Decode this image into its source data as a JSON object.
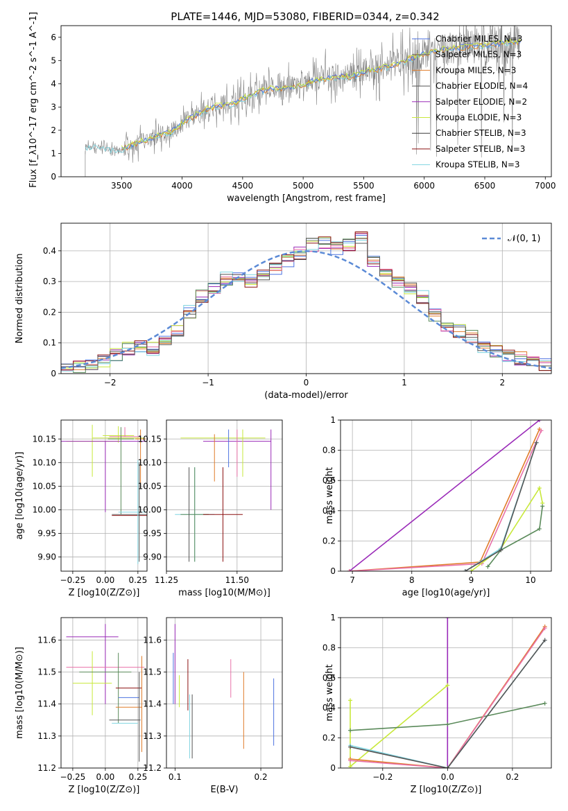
{
  "title": "PLATE=1446, MJD=53080, FIBERID=0344, z=0.342",
  "colors": {
    "s0": "#4c72e0",
    "s1": "#6d6d6d",
    "s2": "#e07b28",
    "s3": "#555555",
    "s4": "#9a2ab8",
    "s5": "#c8e83a",
    "s6": "#3a3a3a",
    "s7": "#8b1010",
    "s8": "#7fd4e0",
    "pink": "#e870a8",
    "green": "#5a8a5a",
    "gray": "#808080"
  },
  "chart_data": [
    {
      "id": "spectrum",
      "type": "line",
      "xlabel": "wavelength [Angstrom, rest frame]",
      "ylabel": "Flux [f_λ10^-17 erg cm^-2 s^-1 A^-1]",
      "xlim": [
        3000,
        7050
      ],
      "ylim": [
        0,
        6.5
      ],
      "xticks": [
        3500,
        4000,
        4500,
        5000,
        5500,
        6000,
        6500,
        7000
      ],
      "yticks": [
        0,
        1,
        2,
        3,
        4,
        5,
        6
      ],
      "legend": [
        "Chabrier MILES, N_SSP=3",
        "Salpeter MILES, N_SSP=3",
        "Kroupa MILES, N_SSP=3",
        "Chabrier ELODIE, N_SSP=4",
        "Salpeter ELODIE, N_SSP=2",
        "Kroupa ELODIE, N_SSP=3",
        "Chabrier STELIB, N_SSP=3",
        "Salpeter STELIB, N_SSP=3",
        "Kroupa STELIB, N_SSP=3"
      ],
      "legend_loc": "upper right",
      "model_x": [
        3200,
        3300,
        3400,
        3500,
        3600,
        3700,
        3800,
        3900,
        4000,
        4100,
        4200,
        4300,
        4400,
        4500,
        4600,
        4700,
        4800,
        4900,
        5000,
        5100,
        5200,
        5300,
        5400,
        5500,
        5600,
        5700,
        5800,
        5900,
        6000,
        6100,
        6200,
        6300,
        6400,
        6500,
        6600,
        6700,
        6800
      ],
      "model_y": [
        1.3,
        1.3,
        1.2,
        1.2,
        1.4,
        1.55,
        1.8,
        1.9,
        2.3,
        2.6,
        2.9,
        3.05,
        3.1,
        3.35,
        3.6,
        3.75,
        3.8,
        3.85,
        3.95,
        4.15,
        4.25,
        4.3,
        4.3,
        4.5,
        4.6,
        4.75,
        4.9,
        5.1,
        5.3,
        5.4,
        5.5,
        5.55,
        5.6,
        5.65,
        5.7,
        5.8,
        5.8
      ]
    },
    {
      "id": "residuals",
      "type": "histogram",
      "xlabel": "(data-model)/error",
      "ylabel": "Normed distribution",
      "xlim": [
        -2.5,
        2.5
      ],
      "ylim": [
        0,
        0.49
      ],
      "xticks": [
        -2,
        -1,
        0,
        1,
        2
      ],
      "yticks": [
        0.0,
        0.1,
        0.2,
        0.3,
        0.4
      ],
      "grid": true,
      "legend": [
        "𝒩(0, 1)"
      ],
      "legend_loc": "upper right",
      "bin_edges_range": [
        -2.5,
        2.5
      ],
      "bins": 40,
      "base_values": [
        0.02,
        0.025,
        0.03,
        0.04,
        0.06,
        0.08,
        0.09,
        0.08,
        0.11,
        0.14,
        0.2,
        0.25,
        0.28,
        0.31,
        0.32,
        0.3,
        0.32,
        0.34,
        0.37,
        0.39,
        0.42,
        0.43,
        0.41,
        0.42,
        0.44,
        0.36,
        0.32,
        0.3,
        0.28,
        0.25,
        0.19,
        0.16,
        0.14,
        0.12,
        0.09,
        0.07,
        0.06,
        0.05,
        0.04,
        0.03
      ]
    },
    {
      "id": "age_vs_Z",
      "type": "errorbar",
      "xlabel": "Z [log10(Z/Z⊙)]",
      "ylabel": "age  [log10(age/yr)]",
      "xlim": [
        -0.34,
        0.32
      ],
      "ylim": [
        9.87,
        10.19
      ],
      "xticks": [
        -0.25,
        0.0,
        0.25
      ],
      "xticklabels": [
        "−0.25",
        "0.00",
        "0.25"
      ],
      "yticks": [
        9.9,
        9.95,
        10.0,
        10.05,
        10.1,
        10.15
      ],
      "yticklabels": [
        "9.90",
        "9.95",
        "10.00",
        "10.05",
        "10.10",
        "10.15"
      ],
      "grid": true,
      "points": [
        {
          "x": 0.1,
          "y": 10.152,
          "xe": 0.2,
          "yl": 0.01,
          "yu": 0.025,
          "c": "s5"
        },
        {
          "x": 0.1,
          "y": 10.157,
          "xe": 0.12,
          "yl": 0.0,
          "yu": 0.0,
          "c": "s5"
        },
        {
          "x": -0.1,
          "y": 10.145,
          "xe": 0.2,
          "yl": 0.075,
          "yu": 0.035,
          "c": "s5"
        },
        {
          "x": 0.0,
          "y": 10.145,
          "xe": 0.35,
          "yl": 0.15,
          "yu": 0.0,
          "c": "s4"
        },
        {
          "x": 0.15,
          "y": 10.155,
          "xe": 0.12,
          "yl": 0.0,
          "yu": 0.02,
          "c": "pink"
        },
        {
          "x": 0.27,
          "y": 10.15,
          "xe": 0.04,
          "yl": 0.105,
          "yu": 0.02,
          "c": "s2"
        },
        {
          "x": 0.12,
          "y": 10.15,
          "xe": 0.1,
          "yl": 0.16,
          "yu": 0.025,
          "c": "green"
        },
        {
          "x": 0.25,
          "y": 9.99,
          "xe": 0.2,
          "yl": 0.0,
          "yu": 0.0,
          "c": "s1"
        },
        {
          "x": 0.25,
          "y": 9.988,
          "xe": 0.2,
          "yl": 0.0,
          "yu": 0.0,
          "c": "s7"
        },
        {
          "x": 0.25,
          "y": 9.995,
          "xe": 0.15,
          "yl": 0.11,
          "yu": 0.11,
          "c": "s8"
        },
        {
          "x": 0.26,
          "y": 10.0,
          "xe": 0.0,
          "yl": 0.11,
          "yu": 0.1,
          "c": "s3"
        }
      ]
    },
    {
      "id": "age_vs_mass",
      "type": "errorbar",
      "xlabel": "mass [log10(M/M⊙)]",
      "ylabel": "",
      "xlim": [
        11.25,
        11.66
      ],
      "ylim": [
        9.87,
        10.19
      ],
      "xticks": [
        11.25,
        11.5
      ],
      "xticklabels": [
        "11.25",
        "11.50"
      ],
      "yticks": [
        9.9,
        9.95,
        10.0,
        10.05,
        10.1,
        10.15
      ],
      "yticklabels": [
        "9.90",
        "9.95",
        "10.00",
        "10.05",
        "10.10",
        "10.15"
      ],
      "grid": true,
      "points": [
        {
          "x": 11.45,
          "y": 10.152,
          "xe": 0.15,
          "yl": 0.0,
          "yu": 0.0,
          "c": "s5"
        },
        {
          "x": 11.5,
          "y": 10.145,
          "xe": 0.12,
          "yl": 0.0,
          "yu": 0.0,
          "c": "s4"
        },
        {
          "x": 11.62,
          "y": 10.14,
          "xe": 0.0,
          "yl": 0.14,
          "yu": 0.03,
          "c": "s4"
        },
        {
          "x": 11.52,
          "y": 10.15,
          "xe": 0.0,
          "yl": 0.08,
          "yu": 0.02,
          "c": "s5"
        },
        {
          "x": 11.47,
          "y": 10.15,
          "xe": 0.0,
          "yl": 0.06,
          "yu": 0.02,
          "c": "s0"
        },
        {
          "x": 11.5,
          "y": 10.15,
          "xe": 0.0,
          "yl": 0.08,
          "yu": 0.02,
          "c": "pink"
        },
        {
          "x": 11.42,
          "y": 10.14,
          "xe": 0.0,
          "yl": 0.08,
          "yu": 0.02,
          "c": "s2"
        },
        {
          "x": 11.35,
          "y": 9.99,
          "xe": 0.07,
          "yl": 0.1,
          "yu": 0.1,
          "c": "s8"
        },
        {
          "x": 11.35,
          "y": 9.99,
          "xe": 0.05,
          "yl": 0.1,
          "yu": 0.1,
          "c": "green"
        },
        {
          "x": 11.45,
          "y": 9.99,
          "xe": 0.07,
          "yl": 0.1,
          "yu": 0.1,
          "c": "s7"
        },
        {
          "x": 11.33,
          "y": 9.99,
          "xe": 0.0,
          "yl": 0.1,
          "yu": 0.1,
          "c": "s3"
        }
      ]
    },
    {
      "id": "weight_vs_age",
      "type": "line",
      "xlabel": "age  [log10(age/yr)]",
      "ylabel": "mass weight",
      "xlim": [
        6.8,
        10.35
      ],
      "ylim": [
        0,
        1.0
      ],
      "xticks": [
        7,
        8,
        9,
        10
      ],
      "yticks": [
        0.0,
        0.2,
        0.4,
        0.6,
        0.8,
        1.0
      ],
      "grid": true,
      "series": [
        {
          "c": "s4",
          "x": [
            6.95,
            10.15
          ],
          "y": [
            0.0,
            1.0
          ]
        },
        {
          "c": "s2",
          "x": [
            6.95,
            9.15,
            10.15
          ],
          "y": [
            0.0,
            0.06,
            0.94
          ]
        },
        {
          "c": "pink",
          "x": [
            6.95,
            9.18,
            10.18
          ],
          "y": [
            0.0,
            0.05,
            0.93
          ]
        },
        {
          "c": "s5",
          "x": [
            9.0,
            9.5,
            10.15,
            10.2
          ],
          "y": [
            0.0,
            0.15,
            0.55,
            0.45
          ]
        },
        {
          "c": "green",
          "x": [
            9.28,
            9.5,
            10.15,
            10.2
          ],
          "y": [
            0.03,
            0.14,
            0.28,
            0.43
          ]
        },
        {
          "c": "s8",
          "x": [
            8.9,
            9.5,
            10.1
          ],
          "y": [
            0.0,
            0.15,
            0.85
          ]
        },
        {
          "c": "s3",
          "x": [
            8.9,
            9.5,
            10.1
          ],
          "y": [
            0.0,
            0.14,
            0.85
          ]
        }
      ]
    },
    {
      "id": "mass_vs_Z",
      "type": "errorbar",
      "xlabel": "Z [log10(Z/Z⊙)]",
      "ylabel": "mass [log10(M/M⊙)]",
      "xlim": [
        -0.34,
        0.32
      ],
      "ylim": [
        11.2,
        11.67
      ],
      "xticks": [
        -0.25,
        0.0,
        0.25
      ],
      "xticklabels": [
        "−0.25",
        "0.00",
        "0.25"
      ],
      "yticks": [
        11.2,
        11.3,
        11.4,
        11.5,
        11.6
      ],
      "yticklabels": [
        "11.2",
        "11.3",
        "11.4",
        "11.5",
        "11.6"
      ],
      "grid": true,
      "points": [
        {
          "x": -0.1,
          "y": 11.61,
          "xe": 0.2,
          "yl": 0.0,
          "yu": 0.0,
          "c": "s4"
        },
        {
          "x": 0.0,
          "y": 11.6,
          "xe": 0.0,
          "yl": 0.2,
          "yu": 0.05,
          "c": "s4"
        },
        {
          "x": 0.0,
          "y": 11.515,
          "xe": 0.3,
          "yl": 0.0,
          "yu": 0.0,
          "c": "pink"
        },
        {
          "x": -0.1,
          "y": 11.465,
          "xe": 0.15,
          "yl": 0.1,
          "yu": 0.1,
          "c": "s5"
        },
        {
          "x": 0.0,
          "y": 11.5,
          "xe": 0.2,
          "yl": 0.0,
          "yu": 0.0,
          "c": "green"
        },
        {
          "x": 0.1,
          "y": 11.45,
          "xe": 0.0,
          "yl": 0.11,
          "yu": 0.11,
          "c": "green"
        },
        {
          "x": 0.18,
          "y": 11.45,
          "xe": 0.1,
          "yl": 0.0,
          "yu": 0.0,
          "c": "s7"
        },
        {
          "x": 0.18,
          "y": 11.42,
          "xe": 0.08,
          "yl": 0.0,
          "yu": 0.0,
          "c": "s0"
        },
        {
          "x": 0.18,
          "y": 11.39,
          "xe": 0.1,
          "yl": 0.0,
          "yu": 0.0,
          "c": "s2"
        },
        {
          "x": 0.15,
          "y": 11.35,
          "xe": 0.12,
          "yl": 0.0,
          "yu": 0.0,
          "c": "s3"
        },
        {
          "x": 0.15,
          "y": 11.34,
          "xe": 0.1,
          "yl": 0.0,
          "yu": 0.0,
          "c": "s8"
        },
        {
          "x": 0.26,
          "y": 11.4,
          "xe": 0.0,
          "yl": 0.18,
          "yu": 0.1,
          "c": "s3"
        },
        {
          "x": 0.28,
          "y": 11.4,
          "xe": 0.0,
          "yl": 0.15,
          "yu": 0.15,
          "c": "s2"
        }
      ]
    },
    {
      "id": "mass_vs_ebv",
      "type": "errorbar",
      "xlabel": "E(B-V)",
      "ylabel": "",
      "xlim": [
        0.09,
        0.225
      ],
      "ylim": [
        11.2,
        11.67
      ],
      "xticks": [
        0.1,
        0.2
      ],
      "xticklabels": [
        "0.1",
        "0.2"
      ],
      "yticks": [
        11.2,
        11.3,
        11.4,
        11.5,
        11.6
      ],
      "yticklabels": [
        "11.2",
        "11.3",
        "11.4",
        "11.5",
        "11.6"
      ],
      "grid": true,
      "points": [
        {
          "x": 0.1,
          "y": 11.5,
          "xe": 0.0,
          "yl": 0.1,
          "yu": 0.15,
          "c": "s4"
        },
        {
          "x": 0.098,
          "y": 11.48,
          "xe": 0.0,
          "yl": 0.08,
          "yu": 0.08,
          "c": "s0"
        },
        {
          "x": 0.105,
          "y": 11.45,
          "xe": 0.0,
          "yl": 0.06,
          "yu": 0.04,
          "c": "s5"
        },
        {
          "x": 0.115,
          "y": 11.45,
          "xe": 0.0,
          "yl": 0.07,
          "yu": 0.09,
          "c": "s7"
        },
        {
          "x": 0.117,
          "y": 11.35,
          "xe": 0.0,
          "yl": 0.12,
          "yu": 0.08,
          "c": "s8"
        },
        {
          "x": 0.12,
          "y": 11.33,
          "xe": 0.0,
          "yl": 0.1,
          "yu": 0.1,
          "c": "s3"
        },
        {
          "x": 0.165,
          "y": 11.48,
          "xe": 0.0,
          "yl": 0.06,
          "yu": 0.06,
          "c": "pink"
        },
        {
          "x": 0.18,
          "y": 11.38,
          "xe": 0.0,
          "yl": 0.12,
          "yu": 0.12,
          "c": "s2"
        },
        {
          "x": 0.215,
          "y": 11.37,
          "xe": 0.0,
          "yl": 0.1,
          "yu": 0.11,
          "c": "s0"
        }
      ]
    },
    {
      "id": "weight_vs_Z",
      "type": "line",
      "xlabel": "Z [log10(Z/Z⊙)]",
      "ylabel": "mass weight",
      "xlim": [
        -0.33,
        0.32
      ],
      "ylim": [
        0,
        1.0
      ],
      "xticks": [
        -0.2,
        0.0,
        0.2
      ],
      "xticklabels": [
        "−0.2",
        "0.0",
        "0.2"
      ],
      "yticks": [
        0.0,
        0.2,
        0.4,
        0.6,
        0.8,
        1.0
      ],
      "grid": true,
      "series": [
        {
          "c": "s4",
          "x": [
            0.0,
            0.0
          ],
          "y": [
            0.0,
            1.0
          ]
        },
        {
          "c": "s5",
          "x": [
            -0.3,
            -0.3,
            0.0
          ],
          "y": [
            0.45,
            0.01,
            0.55
          ]
        },
        {
          "c": "green",
          "x": [
            -0.3,
            0.0,
            0.3
          ],
          "y": [
            0.25,
            0.29,
            0.43
          ]
        },
        {
          "c": "s2",
          "x": [
            -0.3,
            0.0,
            0.3
          ],
          "y": [
            0.06,
            0.0,
            0.94
          ]
        },
        {
          "c": "pink",
          "x": [
            -0.3,
            0.0,
            0.3
          ],
          "y": [
            0.05,
            0.0,
            0.93
          ]
        },
        {
          "c": "s8",
          "x": [
            -0.3,
            0.0,
            0.3
          ],
          "y": [
            0.15,
            0.0,
            0.85
          ]
        },
        {
          "c": "s3",
          "x": [
            -0.3,
            0.0,
            0.3
          ],
          "y": [
            0.14,
            0.0,
            0.85
          ]
        }
      ]
    }
  ]
}
